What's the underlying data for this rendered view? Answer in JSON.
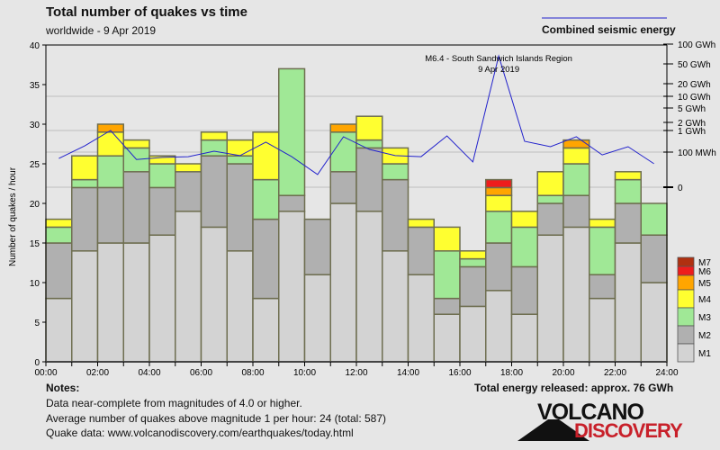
{
  "header": {
    "title": "Total number of quakes vs time",
    "subtitle": "worldwide -  9 Apr 2019",
    "energy_legend": "Combined seismic energy"
  },
  "notes": {
    "heading": "Notes:",
    "lines": [
      "Data near-complete from magnitudes of 4.0 or higher.",
      "Average number of quakes above magnitude 1 per hour: 24 (total: 587)",
      "Quake data: www.volcanodiscovery.com/earthquakes/today.html"
    ],
    "total_energy": "Total energy released: approx. 76 GWh"
  },
  "logo": {
    "line1": "VOLCANO",
    "line2": "DISCOVERY"
  },
  "chart_data": {
    "type": "bar",
    "stacked": true,
    "title": "Total number of quakes vs time",
    "ylabel": "Number of quakes / hour",
    "ylim": [
      0,
      40
    ],
    "yticks": [
      0,
      5,
      10,
      15,
      20,
      25,
      30,
      35,
      40
    ],
    "xticks": [
      "00:00",
      "02:00",
      "04:00",
      "06:00",
      "08:00",
      "10:00",
      "12:00",
      "14:00",
      "16:00",
      "18:00",
      "20:00",
      "22:00",
      "24:00"
    ],
    "hours": [
      0,
      1,
      2,
      3,
      4,
      5,
      6,
      7,
      8,
      9,
      10,
      11,
      12,
      13,
      14,
      15,
      16,
      17,
      18,
      19,
      20,
      21,
      22,
      23
    ],
    "series": [
      {
        "name": "M1",
        "color": "#d3d3d3",
        "values": [
          8,
          14,
          15,
          15,
          16,
          19,
          17,
          14,
          8,
          19,
          11,
          20,
          19,
          14,
          11,
          6,
          7,
          9,
          6,
          16,
          17,
          8,
          15,
          10
        ]
      },
      {
        "name": "M2",
        "color": "#b0b0b0",
        "values": [
          7,
          8,
          7,
          9,
          6,
          5,
          9,
          11,
          10,
          2,
          7,
          4,
          8,
          9,
          6,
          2,
          5,
          6,
          6,
          4,
          4,
          3,
          5,
          6
        ]
      },
      {
        "name": "M3",
        "color": "#a0e896",
        "values": [
          2,
          1,
          4,
          3,
          3,
          0,
          2,
          1,
          5,
          16,
          0,
          5,
          1,
          2,
          0,
          6,
          1,
          4,
          5,
          1,
          4,
          6,
          3,
          4
        ]
      },
      {
        "name": "M4",
        "color": "#ffff30",
        "values": [
          1,
          3,
          3,
          1,
          1,
          1,
          1,
          2,
          6,
          0,
          0,
          0,
          3,
          2,
          1,
          3,
          1,
          2,
          2,
          3,
          2,
          1,
          1,
          0
        ]
      },
      {
        "name": "M5",
        "color": "#ffa500",
        "values": [
          0,
          0,
          1,
          0,
          0,
          0,
          0,
          0,
          0,
          0,
          0,
          1,
          0,
          0,
          0,
          0,
          0,
          1,
          0,
          0,
          1,
          0,
          0,
          0
        ]
      },
      {
        "name": "M6",
        "color": "#ee1c1c",
        "values": [
          0,
          0,
          0,
          0,
          0,
          0,
          0,
          0,
          0,
          0,
          0,
          0,
          0,
          0,
          0,
          0,
          0,
          1,
          0,
          0,
          0,
          0,
          0,
          0
        ]
      },
      {
        "name": "M7",
        "color": "#b03010",
        "values": [
          0,
          0,
          0,
          0,
          0,
          0,
          0,
          0,
          0,
          0,
          0,
          0,
          0,
          0,
          0,
          0,
          0,
          0,
          0,
          0,
          0,
          0,
          0,
          0
        ]
      }
    ],
    "energy": {
      "name": "Combined seismic energy",
      "color": "#2222cc",
      "unit": "MWh",
      "values": [
        82,
        195,
        1000,
        79,
        85,
        87,
        110,
        90,
        288,
        87,
        36,
        513,
        133,
        90,
        87,
        562,
        72,
        66000,
        316,
        178,
        513,
        92,
        178,
        67
      ],
      "axis_ticks": [
        {
          "label": "100 GWh",
          "value": 100000
        },
        {
          "label": "50 GWh",
          "value": 50000
        },
        {
          "label": "20 GWh",
          "value": 20000
        },
        {
          "label": "10 GWh",
          "value": 10000
        },
        {
          "label": "5 GWh",
          "value": 5000
        },
        {
          "label": "2 GWh",
          "value": 2000
        },
        {
          "label": "1 GWh",
          "value": 1000
        },
        {
          "label": "100 MWh",
          "value": 100
        },
        {
          "label": "0",
          "value": 0
        }
      ]
    },
    "annotation": {
      "line1": "M6.4 - South Sandwich Islands Region",
      "line2": "9 Apr 2019",
      "hour": 17
    }
  }
}
